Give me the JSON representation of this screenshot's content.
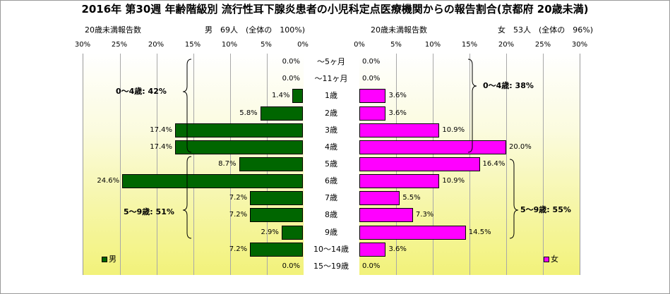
{
  "chart_data": {
    "type": "bar",
    "title": "2016年 第30週 年齢階級別 流行性耳下腺炎患者の小児科定点医療機関からの報告割合(京都府 20歳未満)",
    "categories": [
      "～5ヶ月",
      "～11ヶ月",
      "1歳",
      "2歳",
      "3歳",
      "4歳",
      "5歳",
      "6歳",
      "7歳",
      "8歳",
      "9歳",
      "10～14歳",
      "15～19歳"
    ],
    "xlim": [
      0,
      30
    ],
    "tick_labels": [
      "30%",
      "25%",
      "20%",
      "15%",
      "10%",
      "5%",
      "0%"
    ],
    "tick_labels_right": [
      "0%",
      "5%",
      "10%",
      "15%",
      "20%",
      "25%",
      "30%"
    ],
    "grid": true,
    "series": [
      {
        "name": "男",
        "color": "#006600",
        "header_left": "20歳未満報告数",
        "header_right": "男　69人　(全体の　100%)",
        "values": [
          0.0,
          0.0,
          1.4,
          5.8,
          17.4,
          17.4,
          8.7,
          24.6,
          7.2,
          7.2,
          2.9,
          7.2,
          0.0
        ],
        "labels": [
          "0.0%",
          "0.0%",
          "1.4%",
          "5.8%",
          "17.4%",
          "17.4%",
          "8.7%",
          "24.6%",
          "7.2%",
          "7.2%",
          "2.9%",
          "7.2%",
          "0.0%"
        ],
        "group_labels": [
          "0～4歳: 42%",
          "5～9歳: 51%"
        ]
      },
      {
        "name": "女",
        "color": "#ff00ff",
        "header_left": "20歳未満報告数",
        "header_right": "女　53人　(全体の　96%)",
        "values": [
          0.0,
          0.0,
          3.6,
          3.6,
          10.9,
          20.0,
          16.4,
          10.9,
          5.5,
          7.3,
          14.5,
          3.6,
          0.0
        ],
        "labels": [
          "0.0%",
          "0.0%",
          "3.6%",
          "3.6%",
          "10.9%",
          "20.0%",
          "16.4%",
          "10.9%",
          "5.5%",
          "7.3%",
          "14.5%",
          "3.6%",
          "0.0%"
        ],
        "group_labels": [
          "0～4歳: 38%",
          "5～9歳: 55%"
        ]
      }
    ]
  }
}
